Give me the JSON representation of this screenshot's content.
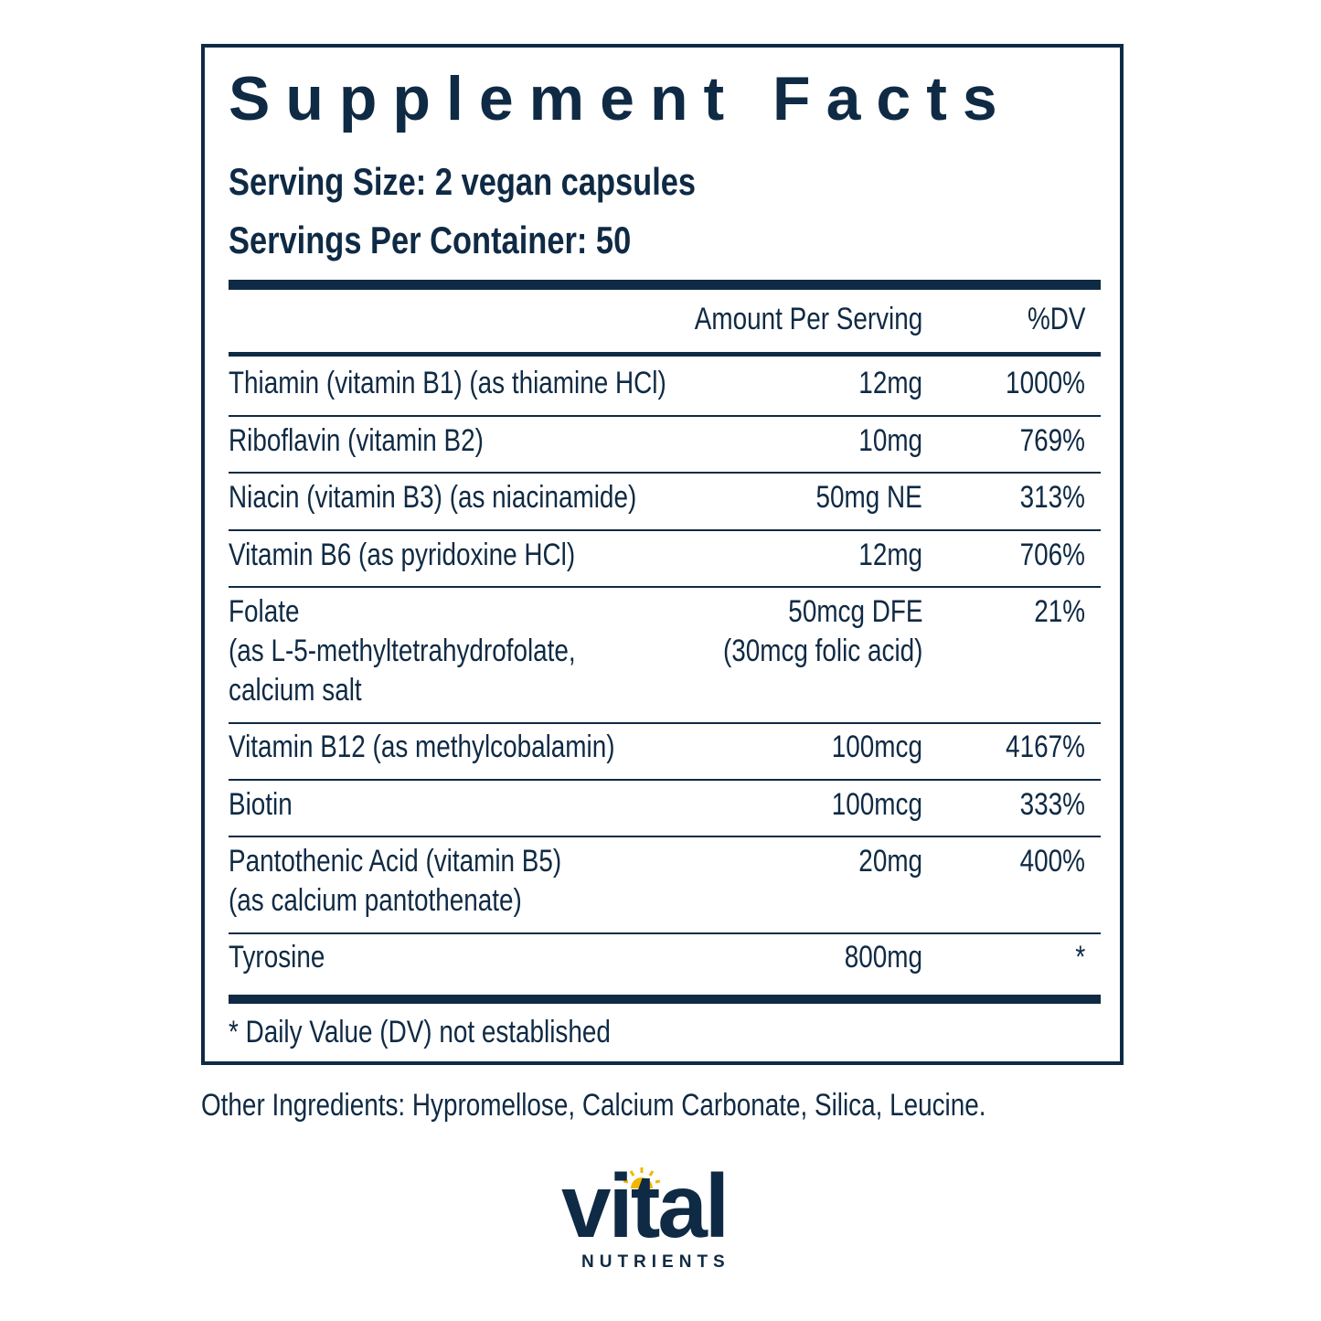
{
  "panel": {
    "title": "Supplement Facts",
    "serving_size": "Serving Size: 2 vegan capsules",
    "servings_per_container": "Servings Per Container: 50",
    "header": {
      "amount": "Amount Per Serving",
      "dv": "%DV"
    },
    "rows": [
      {
        "name": [
          "Thiamin (vitamin B1) (as thiamine HCl)"
        ],
        "amount": [
          "12mg"
        ],
        "dv": "1000%"
      },
      {
        "name": [
          "Riboflavin (vitamin B2)"
        ],
        "amount": [
          "10mg"
        ],
        "dv": "769%"
      },
      {
        "name": [
          "Niacin (vitamin B3) (as niacinamide)"
        ],
        "amount": [
          "50mg NE"
        ],
        "dv": "313%"
      },
      {
        "name": [
          "Vitamin B6 (as pyridoxine HCl)"
        ],
        "amount": [
          "12mg"
        ],
        "dv": "706%"
      },
      {
        "name": [
          "Folate",
          "(as L-5-methyltetrahydrofolate,",
          "calcium salt"
        ],
        "amount": [
          "50mcg DFE",
          "(30mcg folic acid)"
        ],
        "dv": "21%"
      },
      {
        "name": [
          "Vitamin B12 (as methylcobalamin)"
        ],
        "amount": [
          "100mcg"
        ],
        "dv": "4167%"
      },
      {
        "name": [
          "Biotin"
        ],
        "amount": [
          "100mcg"
        ],
        "dv": "333%"
      },
      {
        "name": [
          "Pantothenic Acid (vitamin B5)",
          "(as calcium pantothenate)"
        ],
        "amount": [
          "20mg"
        ],
        "dv": "400%"
      },
      {
        "name": [
          "Tyrosine"
        ],
        "amount": [
          "800mg"
        ],
        "dv": "*"
      }
    ],
    "footnote": "* Daily Value (DV) not established"
  },
  "other_ingredients": "Other Ingredients: Hypromellose, Calcium Carbonate, Silica, Leucine.",
  "logo": {
    "word": "vital",
    "sub": "NUTRIENTS"
  },
  "colors": {
    "navy": "#0f2a44",
    "sun": "#f2b600"
  }
}
